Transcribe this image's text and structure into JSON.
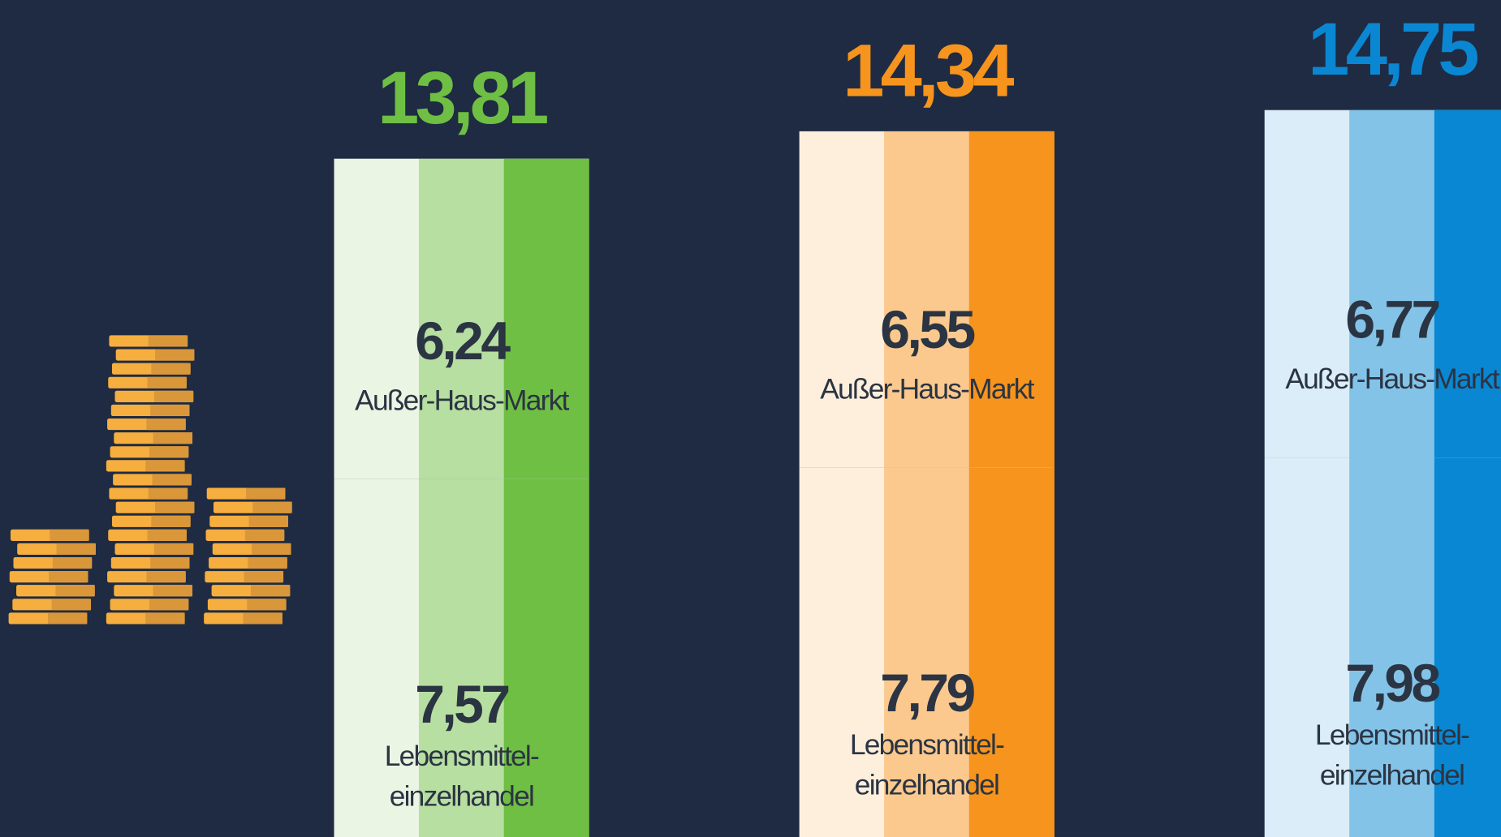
{
  "chart_data": {
    "type": "stacked_bar",
    "categories": [
      null,
      null,
      null
    ],
    "colors": [
      "#6fbf44",
      "#f7941d",
      "#0a87d2"
    ],
    "series": [
      {
        "name": "Lebensmittel-einzelhandel",
        "values": [
          7.57,
          7.79,
          7.98
        ],
        "value_labels": [
          "7,57",
          "7,79",
          "7,98"
        ]
      },
      {
        "name": "Außer-Haus-Markt",
        "values": [
          6.24,
          6.55,
          6.77
        ],
        "value_labels": [
          "6,24",
          "6,55",
          "6,77"
        ]
      }
    ],
    "totals": [
      13.81,
      14.34,
      14.75
    ],
    "total_labels": [
      "13,81",
      "14,34",
      "14,75"
    ]
  }
}
